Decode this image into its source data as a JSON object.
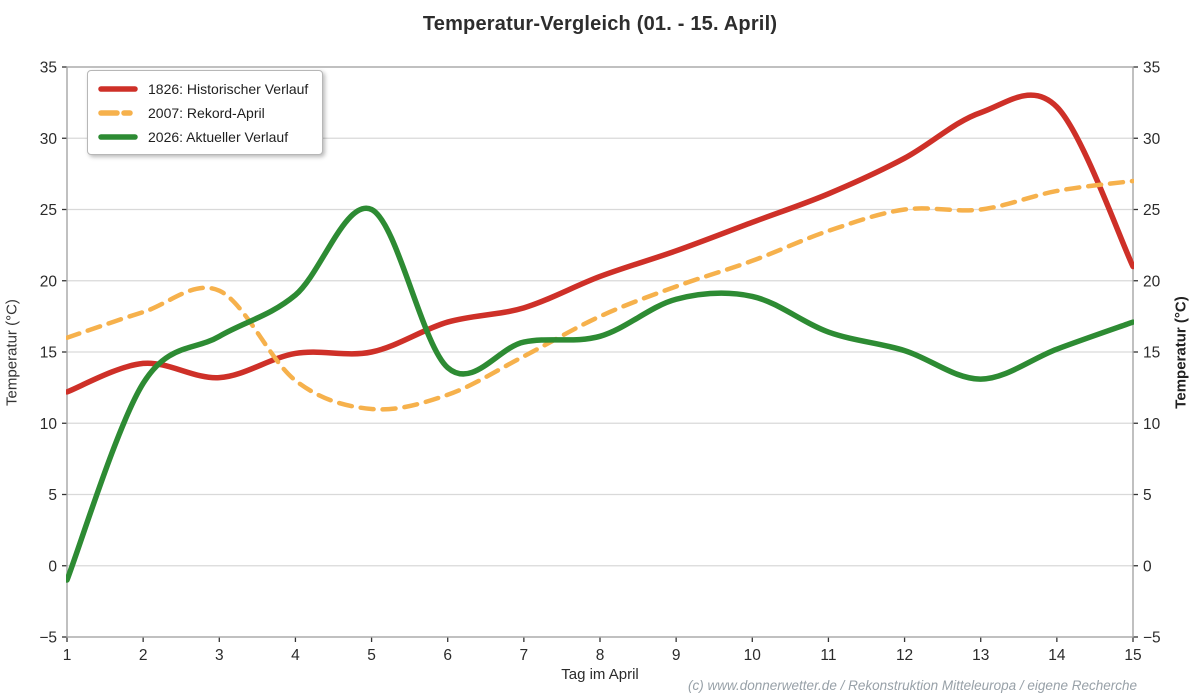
{
  "title": "Temperatur-Vergleich (01. - 15. April)",
  "footer_credit": "(c) www.donnerwetter.de / Rekonstruktion Mitteleuropa / eigene Recherche",
  "chart_data": {
    "type": "line",
    "title": "Temperatur-Vergleich (01. - 15. April)",
    "xlabel": "Tag im April",
    "ylabel_left": "Temperatur (°C)",
    "ylabel_right": "Temperatur (°C)",
    "x": [
      1,
      2,
      3,
      4,
      5,
      6,
      7,
      8,
      9,
      10,
      11,
      12,
      13,
      14,
      15
    ],
    "xlim": [
      1,
      15
    ],
    "ylim": [
      -5,
      35
    ],
    "ytick_step": 5,
    "grid": true,
    "legend_position": "upper-left",
    "series": [
      {
        "name": "1826: Historischer Verlauf",
        "color": "#ce3028",
        "style": "solid",
        "width": 5.5,
        "values": [
          12.2,
          14.2,
          13.2,
          14.9,
          15.0,
          17.1,
          18.1,
          20.3,
          22.1,
          24.1,
          26.1,
          28.6,
          31.8,
          32.2,
          21.0
        ]
      },
      {
        "name": "2007: Rekord-April",
        "color": "#f6b14c",
        "style": "dashed",
        "width": 4.5,
        "values": [
          16.0,
          17.8,
          19.3,
          13.0,
          11.0,
          12.0,
          14.7,
          17.5,
          19.6,
          21.4,
          23.5,
          25.0,
          25.0,
          26.3,
          27.0
        ]
      },
      {
        "name": "2026: Aktueller Verlauf",
        "color": "#2d8b33",
        "style": "solid",
        "width": 5.5,
        "values": [
          -1.0,
          12.8,
          16.1,
          19.0,
          25.0,
          13.9,
          15.7,
          16.1,
          18.7,
          18.9,
          16.4,
          15.1,
          13.1,
          15.2,
          17.1
        ]
      }
    ]
  },
  "colors": {
    "grid": "#d9d9d9",
    "spine": "#a6a6a6",
    "tick": "#333333",
    "tick_text": "#2b2b2b"
  }
}
